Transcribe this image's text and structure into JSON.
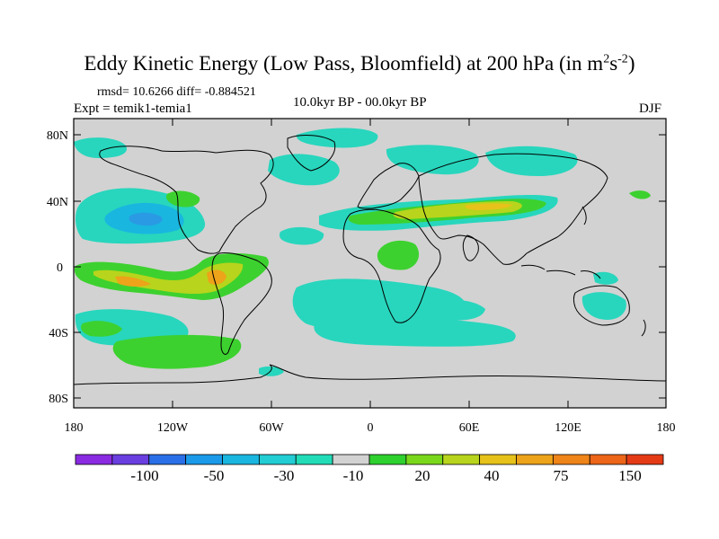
{
  "title": {
    "main": "Eddy Kinetic Energy (Low Pass, Bloomfield) at 200 hPa (in m",
    "sup1": "2",
    "mid": "s",
    "sup2": "-2",
    "end": ")"
  },
  "stats": "rmsd= 10.6266 diff= -0.884521",
  "expt": "Expt = temik1-temia1",
  "period": "10.0kyr BP - 00.0kyr BP",
  "season": "DJF",
  "lat_labels": [
    "80N",
    "40N",
    "0",
    "40S",
    "80S"
  ],
  "lon_labels": [
    "180",
    "120W",
    "60W",
    "0",
    "60E",
    "120E",
    "180"
  ],
  "colorbar": {
    "labels": [
      "-100",
      "-50",
      "-30",
      "-10",
      "20",
      "40",
      "75",
      "150"
    ],
    "colors": [
      "#8a2be2",
      "#6a3fe0",
      "#2a6fe8",
      "#1a9ae8",
      "#19b6e0",
      "#22cdd4",
      "#22dcb8",
      "#d2d2d2",
      "#2fd12f",
      "#7ad81c",
      "#b8d41c",
      "#e6c21a",
      "#eda31a",
      "#ef8418",
      "#ec6518",
      "#e43b16"
    ]
  },
  "colors": {
    "background_field": "#d2d2d2",
    "cyan": "#27d6bd",
    "light_blue": "#19b6e0",
    "blue": "#2a9ae4",
    "green": "#3dd12f",
    "yellow_green": "#b8d41c",
    "orange": "#eda31a"
  }
}
